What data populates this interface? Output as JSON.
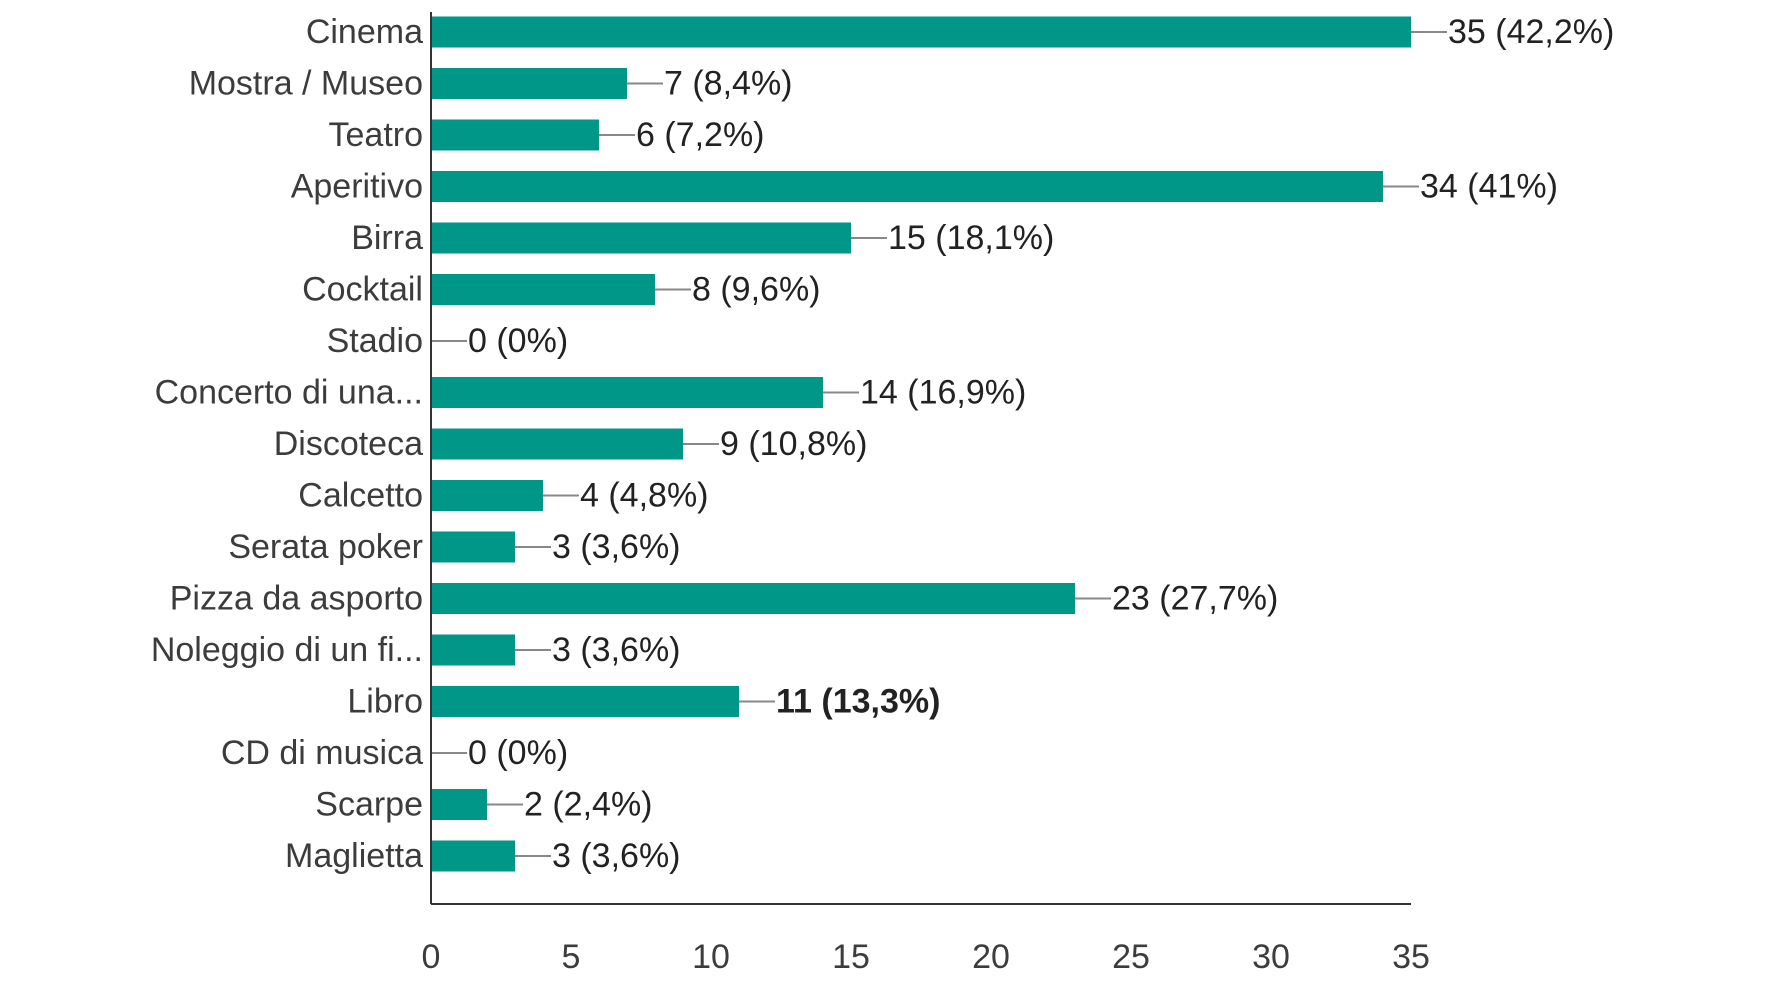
{
  "chart_data": {
    "type": "bar",
    "orientation": "horizontal",
    "categories": [
      "Cinema",
      "Mostra / Museo",
      "Teatro",
      "Aperitivo",
      "Birra",
      "Cocktail",
      "Stadio",
      "Concerto di una...",
      "Discoteca",
      "Calcetto",
      "Serata poker",
      "Pizza da asporto",
      "Noleggio di un fi...",
      "Libro",
      "CD di musica",
      "Scarpe",
      "Maglietta"
    ],
    "values": [
      35,
      7,
      6,
      34,
      15,
      8,
      0,
      14,
      9,
      4,
      3,
      23,
      3,
      11,
      0,
      2,
      3
    ],
    "value_labels": [
      "35 (42,2%)",
      "7 (8,4%)",
      "6 (7,2%)",
      "34 (41%)",
      "15 (18,1%)",
      "8 (9,6%)",
      "0 (0%)",
      "14 (16,9%)",
      "9 (10,8%)",
      "4 (4,8%)",
      "3 (3,6%)",
      "23 (27,7%)",
      "3 (3,6%)",
      "11 (13,3%)",
      "0 (0%)",
      "2 (2,4%)",
      "3 (3,6%)"
    ],
    "highlighted_index": 13,
    "xlim": [
      0,
      35
    ],
    "x_ticks": [
      0,
      5,
      10,
      15,
      20,
      25,
      30,
      35
    ],
    "x_tick_labels": [
      "0",
      "5",
      "10",
      "15",
      "20",
      "25",
      "30",
      "35"
    ],
    "bar_color": "#009688",
    "axis_color": "#333333",
    "leader_color": "#888888",
    "grid": false,
    "legend": "none"
  }
}
